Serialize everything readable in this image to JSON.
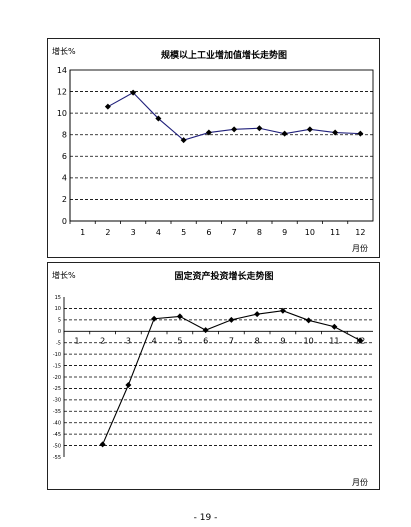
{
  "page_number": "- 19 -",
  "chart_data": [
    {
      "type": "line",
      "title": "规模以上工业增加值增长走势图",
      "ylabel": "增长%",
      "xlabel": "月份",
      "x": [
        1,
        2,
        3,
        4,
        5,
        6,
        7,
        8,
        9,
        10,
        11,
        12
      ],
      "x_tick_labels": [
        "1",
        "2",
        "3",
        "4",
        "5",
        "6",
        "7",
        "8",
        "9",
        "10",
        "11",
        "12"
      ],
      "series": [
        {
          "values": [
            null,
            10.6,
            11.9,
            9.5,
            7.5,
            8.2,
            8.5,
            8.6,
            8.1,
            8.5,
            8.2,
            8.1
          ]
        }
      ],
      "ylim": [
        0,
        14
      ],
      "y_ticks": [
        0,
        2,
        4,
        6,
        8,
        10,
        12,
        14
      ],
      "y_tick_labels": [
        "0",
        "2",
        "4",
        "6",
        "8",
        "10",
        "12",
        "14"
      ],
      "grid": "horizontal dashed",
      "line_color": "#1f1f7a",
      "marker": "diamond"
    },
    {
      "type": "line",
      "title": "固定资产投资增长走势图",
      "ylabel": "增长%",
      "xlabel": "月份",
      "x": [
        1,
        2,
        3,
        4,
        5,
        6,
        7,
        8,
        9,
        10,
        11,
        12
      ],
      "x_tick_labels": [
        "1",
        "2",
        "3",
        "4",
        "5",
        "6",
        "7",
        "8",
        "9",
        "10",
        "11",
        "12"
      ],
      "series": [
        {
          "values": [
            null,
            -49.5,
            -23.5,
            5.5,
            6.5,
            0.5,
            5.0,
            7.5,
            9.0,
            4.8,
            2.0,
            -4.0
          ]
        }
      ],
      "ylim": [
        -55,
        15
      ],
      "y_ticks": [
        15,
        10,
        5,
        0,
        -5,
        -10,
        -15,
        -20,
        -25,
        -30,
        -35,
        -40,
        -45,
        -50,
        -55
      ],
      "y_tick_labels": [
        "15",
        "10",
        "5",
        "0",
        "-5",
        "-10",
        "-15",
        "-20",
        "-25",
        "-30",
        "-35",
        "-40",
        "-45",
        "-50",
        "-55"
      ],
      "grid": "horizontal dashed",
      "line_color": "#000000",
      "marker": "diamond"
    }
  ]
}
